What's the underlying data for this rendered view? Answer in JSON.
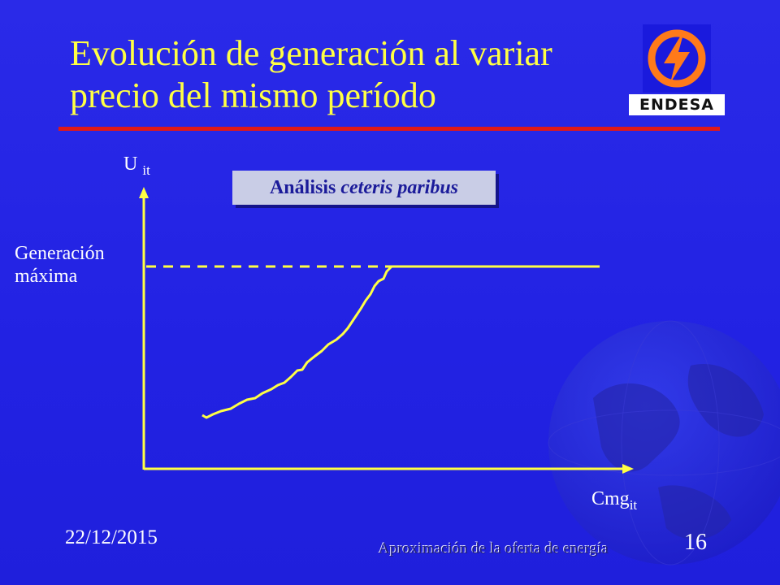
{
  "slide": {
    "title_line1": "Evolución de generación al variar",
    "title_line2": "precio del mismo período",
    "logo_text": "ENDESA",
    "date": "22/12/2015",
    "footer_text": "Aproximación de la oferta de energía",
    "page_number": "16"
  },
  "diagram": {
    "y_axis_label": "U",
    "y_axis_sub": "it",
    "x_axis_label": "Cmg",
    "x_axis_sub": "it",
    "max_label_line1": "Generación",
    "max_label_line2": "máxima",
    "note_prefix": "Análisis",
    "note_italic": "ceteris paribus"
  },
  "colors": {
    "background": "#2222e3",
    "title": "#ffff44",
    "axis": "#ffff44",
    "rule": "#e01818",
    "logo_orange": "#ff7a1a"
  }
}
